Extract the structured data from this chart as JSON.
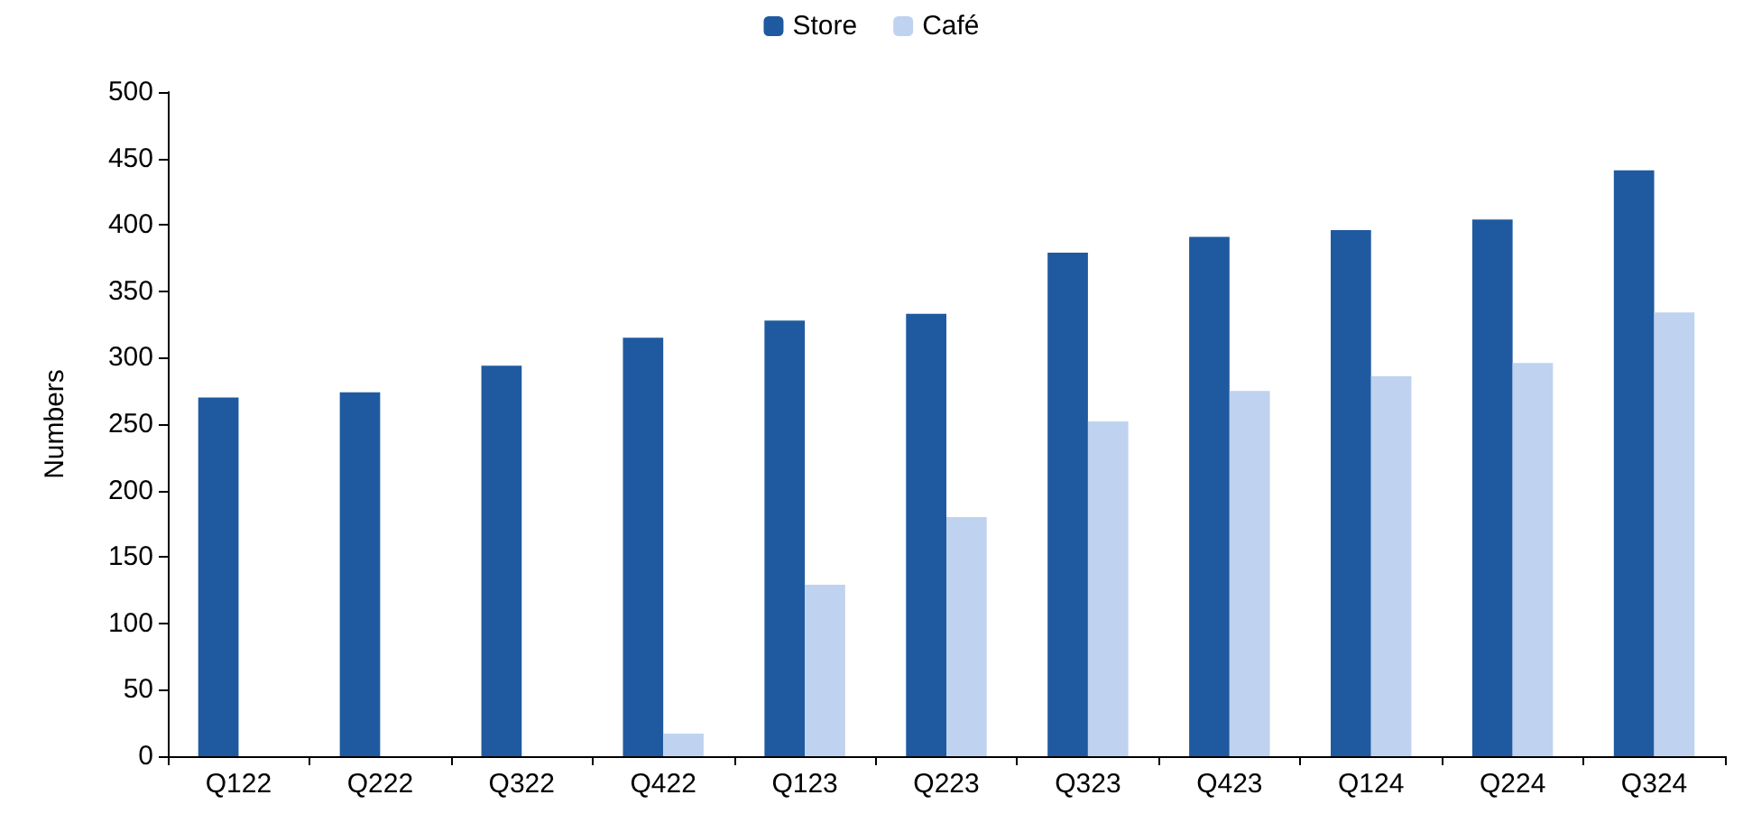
{
  "chart_data": {
    "type": "bar",
    "ylabel": "Numbers",
    "categories": [
      "Q122",
      "Q222",
      "Q322",
      "Q422",
      "Q123",
      "Q223",
      "Q323",
      "Q423",
      "Q124",
      "Q224",
      "Q324"
    ],
    "series": [
      {
        "name": "Store",
        "color": "#1f5aa0",
        "values": [
          270,
          274,
          294,
          315,
          328,
          333,
          379,
          391,
          396,
          404,
          441
        ]
      },
      {
        "name": "Café",
        "color": "#bfd2ef",
        "values": [
          null,
          null,
          null,
          17,
          129,
          180,
          252,
          275,
          286,
          296,
          334
        ]
      }
    ],
    "ylim": [
      0,
      500
    ],
    "yticks": [
      0,
      50,
      100,
      150,
      200,
      250,
      300,
      350,
      400,
      450,
      500
    ],
    "grid": false,
    "legend": "top"
  }
}
